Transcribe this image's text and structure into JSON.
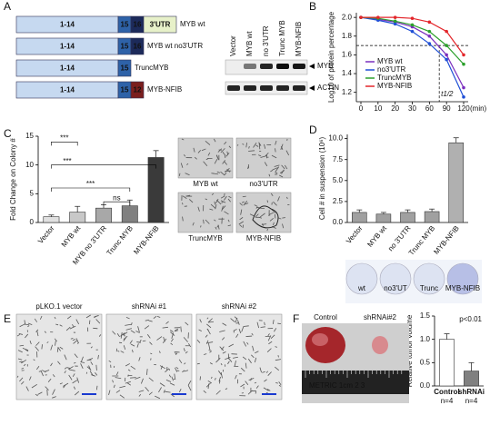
{
  "panel_labels": [
    "A",
    "B",
    "C",
    "D",
    "E",
    "F"
  ],
  "constructs": [
    {
      "segments": [
        {
          "text": "1-14",
          "color": "#c6d9f0"
        },
        {
          "text": "15",
          "color": "#2e62a8"
        },
        {
          "text": "16",
          "color": "#1c2a5a"
        },
        {
          "text": "3'UTR",
          "color": "#e7f1c9"
        }
      ],
      "label": "MYB wt"
    },
    {
      "segments": [
        {
          "text": "1-14",
          "color": "#c6d9f0"
        },
        {
          "text": "15",
          "color": "#2e62a8"
        },
        {
          "text": "16",
          "color": "#1c2a5a"
        }
      ],
      "label": "MYB wt no3'UTR"
    },
    {
      "segments": [
        {
          "text": "1-14",
          "color": "#c6d9f0"
        },
        {
          "text": "15",
          "color": "#2e62a8"
        }
      ],
      "label": "TruncMYB"
    },
    {
      "segments": [
        {
          "text": "1-14",
          "color": "#c6d9f0"
        },
        {
          "text": "15",
          "color": "#2e62a8"
        },
        {
          "text": "12",
          "color": "#7a1e1e"
        }
      ],
      "label": "MYB-NFIB"
    }
  ],
  "blot": {
    "lanes": [
      "Vector",
      "MYB wt",
      "no 3'UTR",
      "Trunc MYB",
      "MYB-NFIB"
    ],
    "bands": [
      "MYB",
      "ACTIN"
    ]
  },
  "colony_images": [
    "MYB wt",
    "no3'UTR",
    "TruncMYB",
    "MYB-NFIB"
  ],
  "suspension_wells": [
    "wt",
    "no3'UT",
    "Trunc",
    "MYB-NFIB"
  ],
  "knockdown_images": [
    "pLKO.1 vector",
    "shRNAi #1",
    "shRNAi #2"
  ],
  "tumor_photo": {
    "labels": [
      "Control",
      "shRNAi#2"
    ],
    "ruler": "METRIC 1cm 2 3"
  },
  "chart_data": [
    {
      "type": "line",
      "ylabel": "Log10 of protein percentage",
      "categories": [
        "0",
        "10",
        "20",
        "30",
        "60",
        "90",
        "120"
      ],
      "xunit": "(min)",
      "series": [
        {
          "name": "MYB wt",
          "color": "#7b2fbe",
          "values": [
            2.0,
            1.98,
            1.95,
            1.9,
            1.8,
            1.6,
            1.25
          ]
        },
        {
          "name": "no3'UTR",
          "color": "#1f4fd6",
          "values": [
            2.0,
            1.97,
            1.93,
            1.85,
            1.72,
            1.55,
            1.15
          ]
        },
        {
          "name": "TruncMYB",
          "color": "#2ca02c",
          "values": [
            2.0,
            1.99,
            1.96,
            1.92,
            1.85,
            1.7,
            1.5
          ]
        },
        {
          "name": "MYB-NFIB",
          "color": "#e3262b",
          "values": [
            2.0,
            2.0,
            2.0,
            1.99,
            1.95,
            1.85,
            1.6
          ]
        }
      ],
      "ylim": [
        1.1,
        2.05
      ],
      "yticks": [
        1.2,
        1.4,
        1.6,
        1.8,
        {
          "value": 2,
          "label": "2.0"
        }
      ],
      "reference_y": 1.7,
      "annotation": "t1/2",
      "legend": "lower left"
    },
    {
      "type": "bar",
      "ylabel": "Fold Change on Colony #",
      "categories": [
        "Vector",
        "MYB wt",
        "MYB no 3'UTR",
        "Trunc MYB",
        "MYB-NFIB"
      ],
      "values": [
        1,
        1.8,
        2.5,
        2.9,
        11.3
      ],
      "errors": [
        0.3,
        1,
        0.6,
        1,
        1.2
      ],
      "colors": [
        "#e0e0e0",
        "#c8c8c8",
        "#a8a8a8",
        "#808080",
        "#3a3a3a"
      ],
      "ylim": [
        0,
        15
      ],
      "yticks": [
        0,
        5,
        10,
        15
      ],
      "significance": [
        "***",
        "***",
        "***",
        "ns"
      ]
    },
    {
      "type": "bar",
      "ylabel": "Cell # in suspension (10⁶)",
      "categories": [
        "Vector",
        "MYB wt",
        "no 3'UTR",
        "Trunc MYB",
        "MYB-NFIB"
      ],
      "values": [
        1.2,
        1.0,
        1.2,
        1.3,
        9.5
      ],
      "errors": [
        0.3,
        0.2,
        0.3,
        0.3,
        0.6
      ],
      "colors": [
        "#a0a0a0",
        "#a0a0a0",
        "#a0a0a0",
        "#a0a0a0",
        "#b0b0b0"
      ],
      "ylim": [
        0,
        10.5
      ],
      "yticks": [
        {
          "value": 0,
          "label": "0.0"
        },
        2.5,
        {
          "value": 5,
          "label": "5.0"
        },
        7.5,
        {
          "value": 10,
          "label": "10.0"
        }
      ]
    },
    {
      "type": "bar",
      "ylabel": "Relative tumor volume",
      "categories": [
        "Control",
        "shRNAi"
      ],
      "sublabels": [
        "n=4",
        "n=4"
      ],
      "values": [
        1.0,
        0.32
      ],
      "errors": [
        0.12,
        0.18
      ],
      "colors": [
        "#ffffff",
        "#808080"
      ],
      "ylim": [
        0,
        1.5
      ],
      "yticks": [
        {
          "value": 0,
          "label": "0.0"
        },
        0.5,
        {
          "value": 1,
          "label": "1.0"
        },
        1.5
      ],
      "annotation": "p<0.01"
    }
  ]
}
